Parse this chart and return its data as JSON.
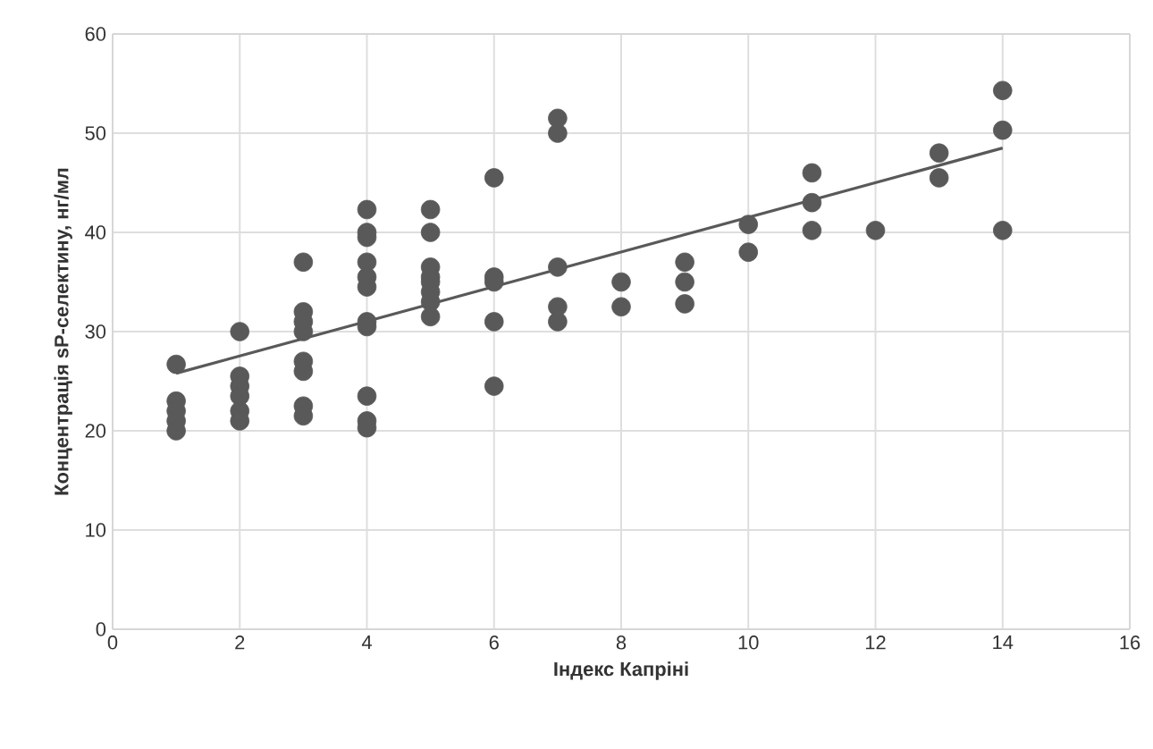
{
  "chart_data": {
    "type": "scatter",
    "xlabel": "Індекс Капріні",
    "ylabel": "Концентрація sP-селектину, нг/мл",
    "xlim": [
      0,
      16
    ],
    "xticks": [
      0,
      2,
      4,
      6,
      8,
      10,
      12,
      14,
      16
    ],
    "ylim": [
      0,
      60
    ],
    "yticks": [
      0,
      10,
      20,
      30,
      40,
      50,
      60
    ],
    "grid": true,
    "marker": "circle",
    "series": [
      {
        "color": "#595959",
        "x": [
          1,
          1,
          1,
          1,
          1,
          2,
          2,
          2,
          2,
          2,
          2,
          3,
          3,
          3,
          3,
          3,
          3,
          3,
          3,
          4,
          4,
          4,
          4,
          4,
          4,
          4,
          4,
          4,
          4,
          4,
          5,
          5,
          5,
          5,
          5,
          5,
          5,
          5,
          6,
          6,
          6,
          6,
          6,
          7,
          7,
          7,
          7,
          7,
          8,
          8,
          9,
          9,
          9,
          10,
          10,
          11,
          11,
          11,
          12,
          13,
          13,
          14,
          14,
          14
        ],
        "values": [
          26.7,
          23,
          22,
          21,
          20,
          30,
          25.5,
          24.5,
          23.5,
          22,
          21,
          37,
          32,
          31,
          30,
          27,
          26,
          22.5,
          21.5,
          42.3,
          40,
          39.5,
          37,
          35.5,
          34.5,
          31,
          30.5,
          23.5,
          21,
          20.3,
          42.3,
          40,
          36.5,
          35.5,
          35,
          34,
          33,
          31.5,
          45.5,
          35.5,
          35,
          31,
          24.5,
          51.5,
          50,
          36.5,
          32.5,
          31,
          35,
          32.5,
          37,
          35,
          32.8,
          40.8,
          38,
          46,
          43,
          40.2,
          40.2,
          48,
          45.5,
          54.3,
          50.3,
          40.2
        ]
      },
      {
        "type": "line",
        "color": "#595959",
        "marker": "none",
        "x": [
          1,
          14
        ],
        "values": [
          25.8,
          48.5
        ]
      }
    ]
  }
}
